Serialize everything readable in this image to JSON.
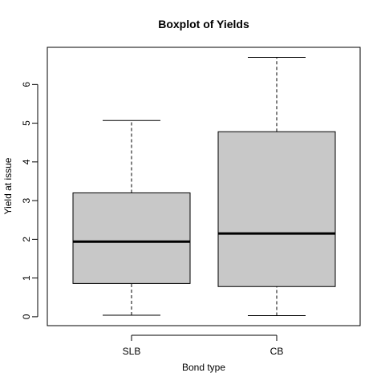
{
  "chart_data": {
    "type": "boxplot",
    "title": "Boxplot of Yields",
    "xlabel": "Bond type",
    "ylabel": "Yield at issue",
    "categories": [
      "SLB",
      "CB"
    ],
    "boxes": [
      {
        "name": "SLB",
        "min": 0.04,
        "q1": 0.86,
        "median": 1.94,
        "q3": 3.2,
        "max": 5.07
      },
      {
        "name": "CB",
        "min": 0.03,
        "q1": 0.78,
        "median": 2.15,
        "q3": 4.78,
        "max": 6.7
      }
    ],
    "ylim": [
      -0.23,
      6.96
    ],
    "yticks": [
      0,
      1,
      2,
      3,
      4,
      5,
      6
    ],
    "box_fill": "#c8c8c8",
    "grid": false
  }
}
